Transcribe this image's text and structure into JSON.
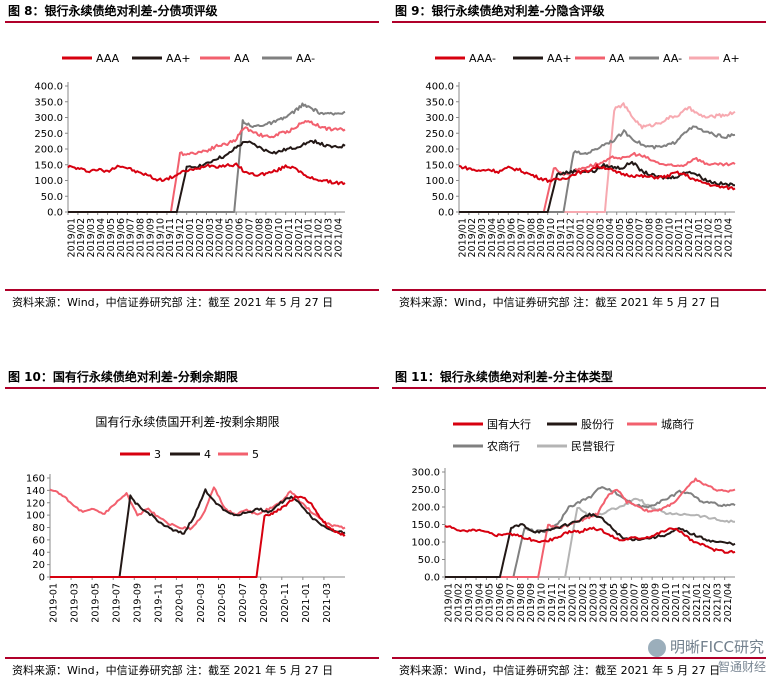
{
  "source_text": "资料来源：Wind，中信证券研究部  注：截至 2021 年 5 月 27 日",
  "watermark": "明晰FICC研究",
  "watermark_small": "智通财经",
  "colors": {
    "red": "#d7000f",
    "black": "#231816",
    "pink": "#f2606e",
    "gray": "#808080",
    "lightpink": "#f7a9b0",
    "lightgray": "#b4b4b4",
    "rule": "#b0002a"
  },
  "chart_data": [
    {
      "panel_title": "图 8：银行永续债绝对利差-分债项评级",
      "type": "line",
      "title": "",
      "xlabel": "",
      "ylabel": "",
      "ylim": [
        0,
        400
      ],
      "yticks": [
        "0.0",
        "50.0",
        "100.0",
        "150.0",
        "200.0",
        "250.0",
        "300.0",
        "350.0",
        "400.0"
      ],
      "xticks": [
        "2019/01",
        "2019/02",
        "2019/03",
        "2019/04",
        "2019/05",
        "2019/06",
        "2019/07",
        "2019/08",
        "2019/09",
        "2019/10",
        "2019/11",
        "2019/12",
        "2020/01",
        "2020/02",
        "2020/03",
        "2020/04",
        "2020/05",
        "2020/06",
        "2020/07",
        "2020/08",
        "2020/09",
        "2020/10",
        "2020/11",
        "2020/12",
        "2021/01",
        "2021/02",
        "2021/03",
        "2021/04"
      ],
      "legend_position": "top",
      "grid": false,
      "series": [
        {
          "name": "AAA",
          "color_key": "red",
          "start": 0,
          "values": [
            145,
            138,
            130,
            135,
            128,
            148,
            140,
            126,
            118,
            102,
            104,
            118,
            132,
            135,
            150,
            145,
            148,
            150,
            125,
            118,
            122,
            130,
            145,
            142,
            112,
            105,
            98,
            93,
            92
          ]
        },
        {
          "name": "AA+",
          "color_key": "black",
          "start": 11.0,
          "values": [
            0,
            140,
            145,
            152,
            170,
            178,
            205,
            225,
            210,
            195,
            188,
            198,
            205,
            218,
            225,
            210,
            205,
            210
          ]
        },
        {
          "name": "AA",
          "color_key": "pink",
          "start": 10.4,
          "values": [
            0,
            185,
            185,
            190,
            196,
            210,
            215,
            228,
            268,
            255,
            242,
            238,
            250,
            258,
            278,
            290,
            275,
            265,
            262,
            262
          ]
        },
        {
          "name": "AA-",
          "color_key": "gray",
          "start": 16.8,
          "values": [
            0,
            290,
            270,
            275,
            280,
            288,
            300,
            318,
            340,
            330,
            315,
            310,
            312,
            318
          ]
        }
      ]
    },
    {
      "panel_title": "图 9：银行永续债绝对利差-分隐含评级",
      "type": "line",
      "title": "",
      "xlabel": "",
      "ylabel": "",
      "ylim": [
        0,
        400
      ],
      "yticks": [
        "0.0",
        "50.0",
        "100.0",
        "150.0",
        "200.0",
        "250.0",
        "300.0",
        "350.0",
        "400.0"
      ],
      "xticks": [
        "2019/01",
        "2019/02",
        "2019/03",
        "2019/04",
        "2019/05",
        "2019/06",
        "2019/07",
        "2019/08",
        "2019/09",
        "2019/10",
        "2019/11",
        "2019/12",
        "2020/01",
        "2020/02",
        "2020/03",
        "2020/04",
        "2020/05",
        "2020/06",
        "2020/07",
        "2020/08",
        "2020/09",
        "2020/10",
        "2020/11",
        "2020/12",
        "2021/01",
        "2021/02",
        "2021/03",
        "2021/04"
      ],
      "legend_position": "top",
      "grid": false,
      "series": [
        {
          "name": "AAA-",
          "color_key": "red",
          "start": 0,
          "values": [
            145,
            138,
            130,
            135,
            128,
            140,
            135,
            122,
            110,
            100,
            102,
            110,
            125,
            130,
            145,
            140,
            125,
            118,
            115,
            112,
            110,
            112,
            125,
            118,
            100,
            92,
            82,
            78,
            75
          ]
        },
        {
          "name": "AA+",
          "color_key": "black",
          "start": 9.0,
          "values": [
            0,
            120,
            125,
            130,
            128,
            130,
            148,
            142,
            140,
            160,
            130,
            118,
            110,
            108,
            115,
            130,
            118,
            100,
            92,
            88,
            85
          ]
        },
        {
          "name": "AA",
          "color_key": "pink",
          "start": 8.6,
          "values": [
            0,
            140,
            120,
            130,
            142,
            150,
            158,
            175,
            170,
            185,
            175,
            160,
            150,
            145,
            150,
            172,
            155,
            150,
            150,
            152
          ]
        },
        {
          "name": "AA-",
          "color_key": "gray",
          "start": 10.6,
          "values": [
            0,
            190,
            185,
            195,
            215,
            228,
            255,
            230,
            210,
            205,
            208,
            220,
            255,
            270,
            255,
            245,
            238,
            245
          ]
        },
        {
          "name": "A+",
          "color_key": "lightpink",
          "start": 14.8,
          "values": [
            0,
            325,
            342,
            300,
            270,
            275,
            285,
            300,
            308,
            332,
            310,
            300,
            305,
            308,
            318
          ]
        }
      ]
    },
    {
      "panel_title": "图 10：国有行永续债绝对利差-分剩余期限",
      "type": "line",
      "title": "国有行永续债国开利差-按剩余期限",
      "xlabel": "",
      "ylabel": "",
      "ylim": [
        0,
        160
      ],
      "yticks": [
        "0",
        "20",
        "40",
        "60",
        "80",
        "100",
        "120",
        "140",
        "160"
      ],
      "xticks": [
        "2019-01",
        "2019-03",
        "2019-05",
        "2019-07",
        "2019-09",
        "2019-11",
        "2020-01",
        "2020-03",
        "2020-05",
        "2020-07",
        "2020-09",
        "2020-11",
        "2021-01",
        "2021-03"
      ],
      "legend_position": "top",
      "grid": false,
      "series": [
        {
          "name": "3",
          "color_key": "red",
          "start": 9.8,
          "values": [
            0,
            100,
            102,
            110,
            120,
            130,
            128,
            115,
            95,
            80,
            72,
            68
          ]
        },
        {
          "name": "4",
          "color_key": "black",
          "start": 3.3,
          "values": [
            0,
            130,
            110,
            100,
            85,
            75,
            70,
            100,
            140,
            120,
            105,
            100,
            105,
            110,
            105,
            120,
            130,
            115,
            95,
            82,
            75,
            72
          ]
        },
        {
          "name": "5",
          "color_key": "pink",
          "start": 0,
          "values": [
            140,
            135,
            118,
            105,
            110,
            102,
            120,
            135,
            100,
            110,
            95,
            85,
            80,
            78,
            100,
            145,
            110,
            100,
            108,
            100,
            110,
            118,
            138,
            120,
            105,
            90,
            82,
            80
          ]
        }
      ]
    },
    {
      "panel_title": "图 11：银行永续债绝对利差-分主体类型",
      "type": "line",
      "title": "",
      "xlabel": "",
      "ylabel": "",
      "ylim": [
        0,
        300
      ],
      "yticks": [
        "0.0",
        "50.0",
        "100.0",
        "150.0",
        "200.0",
        "250.0",
        "300.0"
      ],
      "xticks": [
        "2019/01",
        "2019/02",
        "2019/03",
        "2019/04",
        "2019/05",
        "2019/06",
        "2019/07",
        "2019/08",
        "2019/09",
        "2019/10",
        "2019/11",
        "2019/12",
        "2020/01",
        "2020/02",
        "2020/03",
        "2020/04",
        "2020/05",
        "2020/06",
        "2020/07",
        "2020/08",
        "2020/09",
        "2020/10",
        "2020/11",
        "2020/12",
        "2021/01",
        "2021/02",
        "2021/03",
        "2021/04"
      ],
      "legend_position": "top",
      "grid": false,
      "series": [
        {
          "name": "国有大行",
          "color_key": "red",
          "start": 0,
          "values": [
            145,
            138,
            130,
            135,
            128,
            120,
            125,
            118,
            110,
            100,
            104,
            115,
            130,
            128,
            140,
            135,
            118,
            105,
            112,
            112,
            118,
            130,
            140,
            125,
            100,
            90,
            78,
            72,
            72
          ]
        },
        {
          "name": "股份行",
          "color_key": "black",
          "start": 5.3,
          "values": [
            0,
            140,
            150,
            130,
            130,
            140,
            150,
            160,
            180,
            170,
            140,
            110,
            108,
            110,
            115,
            122,
            138,
            125,
            112,
            102,
            98,
            95
          ]
        },
        {
          "name": "城商行",
          "color_key": "pink",
          "start": 9.0,
          "values": [
            0,
            150,
            140,
            148,
            158,
            170,
            180,
            230,
            250,
            215,
            205,
            190,
            188,
            200,
            218,
            250,
            280,
            262,
            250,
            245,
            250
          ]
        },
        {
          "name": "农商行",
          "color_key": "gray",
          "start": 6.6,
          "values": [
            0,
            140,
            130,
            130,
            150,
            200,
            215,
            230,
            260,
            245,
            225,
            205,
            200,
            212,
            225,
            245,
            238,
            215,
            210,
            205,
            205
          ]
        },
        {
          "name": "民营银行",
          "color_key": "lightgray",
          "start": 11.6,
          "values": [
            0,
            200,
            175,
            180,
            195,
            208,
            225,
            200,
            185,
            178,
            180,
            175,
            168,
            160,
            158
          ]
        }
      ]
    }
  ]
}
